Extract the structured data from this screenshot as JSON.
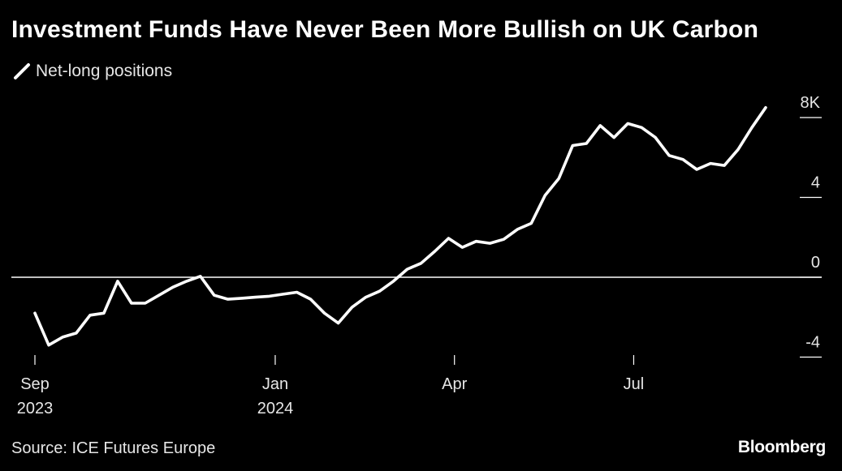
{
  "title": "Investment Funds Have Never Been More Bullish on UK Carbon",
  "source": "Source: ICE Futures Europe",
  "brand": "Bloomberg",
  "colors": {
    "background": "#000000",
    "line": "#ffffff",
    "zero_line": "#ffffff",
    "text": "#ffffff"
  },
  "chart_data": {
    "type": "line",
    "title": "Investment Funds Have Never Been More Bullish on UK Carbon",
    "xlabel": "",
    "ylabel": "",
    "y_axis_position": "right",
    "ylim": [
      -4,
      8
    ],
    "y_ticks": [
      {
        "value": 8,
        "label": "8K"
      },
      {
        "value": 4,
        "label": "4"
      },
      {
        "value": 0,
        "label": "0"
      },
      {
        "value": -4,
        "label": "-4"
      }
    ],
    "x_ticks": [
      {
        "date": "2023-09-01",
        "label": "Sep",
        "sublabel": "2023"
      },
      {
        "date": "2024-01-01",
        "label": "Jan",
        "sublabel": "2024"
      },
      {
        "date": "2024-04-01",
        "label": "Apr",
        "sublabel": ""
      },
      {
        "date": "2024-07-01",
        "label": "Jul",
        "sublabel": ""
      }
    ],
    "grid": false,
    "zero_line": true,
    "legend": {
      "position": "top-left"
    },
    "series": [
      {
        "name": "Net-long positions",
        "points": [
          [
            "2023-09-01",
            -1.8
          ],
          [
            "2023-09-08",
            -3.4
          ],
          [
            "2023-09-15",
            -3.0
          ],
          [
            "2023-09-22",
            -2.8
          ],
          [
            "2023-09-29",
            -1.9
          ],
          [
            "2023-10-06",
            -1.8
          ],
          [
            "2023-10-13",
            -0.2
          ],
          [
            "2023-10-20",
            -1.3
          ],
          [
            "2023-10-27",
            -1.3
          ],
          [
            "2023-11-03",
            -0.9
          ],
          [
            "2023-11-10",
            -0.5
          ],
          [
            "2023-11-17",
            -0.2
          ],
          [
            "2023-11-24",
            0.05
          ],
          [
            "2023-12-01",
            -0.9
          ],
          [
            "2023-12-08",
            -1.1
          ],
          [
            "2023-12-15",
            -1.05
          ],
          [
            "2023-12-22",
            -1.0
          ],
          [
            "2023-12-29",
            -0.95
          ],
          [
            "2024-01-05",
            -0.85
          ],
          [
            "2024-01-12",
            -0.75
          ],
          [
            "2024-01-19",
            -1.1
          ],
          [
            "2024-01-26",
            -1.8
          ],
          [
            "2024-02-02",
            -2.3
          ],
          [
            "2024-02-09",
            -1.5
          ],
          [
            "2024-02-16",
            -1.0
          ],
          [
            "2024-02-23",
            -0.7
          ],
          [
            "2024-03-01",
            -0.2
          ],
          [
            "2024-03-08",
            0.4
          ],
          [
            "2024-03-15",
            0.7
          ],
          [
            "2024-03-22",
            1.3
          ],
          [
            "2024-03-29",
            1.95
          ],
          [
            "2024-04-05",
            1.5
          ],
          [
            "2024-04-12",
            1.8
          ],
          [
            "2024-04-19",
            1.7
          ],
          [
            "2024-04-26",
            1.9
          ],
          [
            "2024-05-03",
            2.4
          ],
          [
            "2024-05-10",
            2.7
          ],
          [
            "2024-05-17",
            4.1
          ],
          [
            "2024-05-24",
            4.95
          ],
          [
            "2024-05-31",
            6.6
          ],
          [
            "2024-06-07",
            6.7
          ],
          [
            "2024-06-14",
            7.6
          ],
          [
            "2024-06-21",
            7.0
          ],
          [
            "2024-06-28",
            7.7
          ],
          [
            "2024-07-05",
            7.5
          ],
          [
            "2024-07-12",
            7.0
          ],
          [
            "2024-07-19",
            6.1
          ],
          [
            "2024-07-26",
            5.9
          ],
          [
            "2024-08-02",
            5.4
          ],
          [
            "2024-08-09",
            5.7
          ],
          [
            "2024-08-16",
            5.6
          ],
          [
            "2024-08-23",
            6.4
          ],
          [
            "2024-08-30",
            7.5
          ],
          [
            "2024-09-06",
            8.5
          ]
        ]
      }
    ]
  }
}
